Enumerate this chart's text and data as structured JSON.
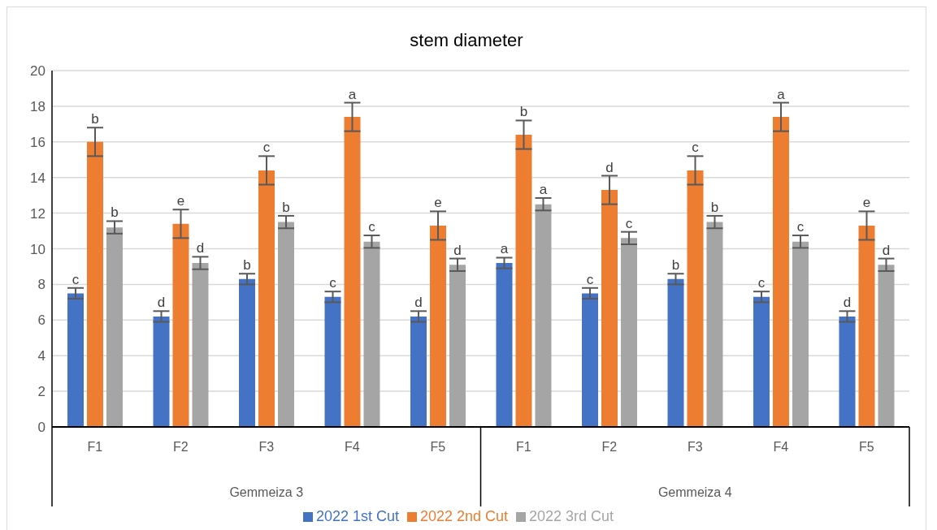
{
  "chart_data": {
    "type": "bar",
    "title": "stem diameter",
    "categories": [
      "F1",
      "F2",
      "F3",
      "F4",
      "F5",
      "F1",
      "F2",
      "F3",
      "F4",
      "F5"
    ],
    "annotations": [
      "Gemmeiza 3",
      "Gemmeiza 4"
    ],
    "series": [
      {
        "name": "2022 1st Cut",
        "color": "#4472c4",
        "values": [
          7.5,
          6.2,
          8.3,
          7.3,
          6.2,
          9.2,
          7.5,
          8.3,
          7.3,
          6.2
        ],
        "errors": [
          0.3,
          0.3,
          0.3,
          0.3,
          0.3,
          0.3,
          0.3,
          0.3,
          0.3,
          0.3
        ],
        "value_labels": [
          "c",
          "d",
          "b",
          "c",
          "d",
          "a",
          "c",
          "b",
          "c",
          "d"
        ]
      },
      {
        "name": "2022 2nd Cut",
        "color": "#ed7d31",
        "values": [
          16.0,
          11.4,
          14.4,
          17.4,
          11.3,
          16.4,
          13.3,
          14.4,
          17.4,
          11.3
        ],
        "errors": [
          0.8,
          0.8,
          0.8,
          0.8,
          0.8,
          0.8,
          0.8,
          0.8,
          0.8,
          0.8
        ],
        "value_labels": [
          "b",
          "e",
          "c",
          "a",
          "e",
          "b",
          "d",
          "c",
          "a",
          "e"
        ]
      },
      {
        "name": "2022 3rd Cut",
        "color": "#a5a5a5",
        "values": [
          11.2,
          9.2,
          11.5,
          10.4,
          9.1,
          12.5,
          10.6,
          11.5,
          10.4,
          9.1
        ],
        "errors": [
          0.35,
          0.35,
          0.35,
          0.35,
          0.35,
          0.35,
          0.35,
          0.35,
          0.35,
          0.35
        ],
        "value_labels": [
          "b",
          "d",
          "b",
          "c",
          "d",
          "a",
          "c",
          "b",
          "c",
          "d"
        ]
      }
    ],
    "ylim": [
      0,
      20
    ],
    "yticks": [
      0,
      2,
      4,
      6,
      8,
      10,
      12,
      14,
      16,
      18,
      20
    ],
    "grid": "y",
    "legend": "bottom"
  }
}
